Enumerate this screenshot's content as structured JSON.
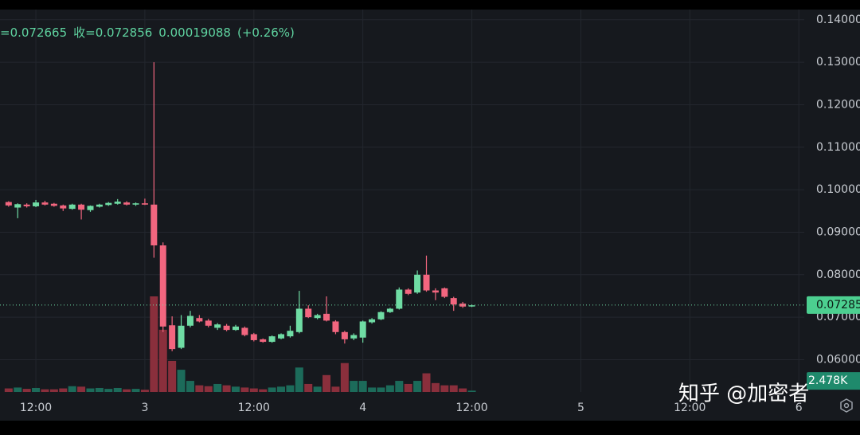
{
  "chart_data": {
    "type": "candlestick",
    "ohlc_header": [
      "=0.072665",
      "收=0.072856",
      "0.00019088",
      "(+0.26%)"
    ],
    "x": [
      9,
      10,
      11,
      12,
      13,
      14,
      15,
      16,
      17,
      18,
      19,
      20,
      21,
      22,
      23,
      24,
      25,
      26,
      27,
      28,
      29,
      30,
      31,
      32,
      33,
      34,
      35,
      36,
      37,
      38,
      39,
      40,
      41,
      42,
      43,
      44,
      45,
      46,
      47,
      48,
      49,
      50,
      51,
      52,
      53,
      54,
      55,
      56,
      57,
      58,
      59,
      60
    ],
    "open": [
      0.0971,
      0.0958,
      0.0965,
      0.0961,
      0.097,
      0.0967,
      0.0963,
      0.0955,
      0.0965,
      0.0952,
      0.096,
      0.0964,
      0.0967,
      0.097,
      0.0965,
      0.0968,
      0.0965,
      0.0869,
      0.0681,
      0.0628,
      0.068,
      0.0698,
      0.0692,
      0.0675,
      0.068,
      0.067,
      0.0675,
      0.066,
      0.0648,
      0.0642,
      0.065,
      0.0655,
      0.0665,
      0.072,
      0.0698,
      0.0708,
      0.069,
      0.0665,
      0.065,
      0.0652,
      0.0688,
      0.0695,
      0.0712,
      0.072,
      0.0765,
      0.0758,
      0.08,
      0.0763,
      0.0768,
      0.0745,
      0.0732,
      0.0726
    ],
    "high": [
      0.0973,
      0.0968,
      0.0968,
      0.0976,
      0.0974,
      0.0969,
      0.0965,
      0.0967,
      0.0967,
      0.0963,
      0.0967,
      0.0971,
      0.0978,
      0.0973,
      0.097,
      0.0979,
      0.13,
      0.0876,
      0.0702,
      0.0705,
      0.0715,
      0.0705,
      0.0696,
      0.0686,
      0.0684,
      0.0682,
      0.0678,
      0.0663,
      0.065,
      0.0657,
      0.0662,
      0.068,
      0.0762,
      0.0728,
      0.0708,
      0.0749,
      0.0693,
      0.0668,
      0.0662,
      0.0692,
      0.0698,
      0.0714,
      0.0722,
      0.077,
      0.0768,
      0.081,
      0.0845,
      0.0768,
      0.077,
      0.0748,
      0.0736,
      0.073
    ],
    "low": [
      0.096,
      0.0933,
      0.0958,
      0.0959,
      0.0963,
      0.096,
      0.095,
      0.0953,
      0.093,
      0.0948,
      0.0958,
      0.0962,
      0.0965,
      0.0963,
      0.0962,
      0.0964,
      0.084,
      0.0665,
      0.062,
      0.0625,
      0.0676,
      0.0688,
      0.0676,
      0.067,
      0.0667,
      0.0668,
      0.0655,
      0.0643,
      0.064,
      0.064,
      0.0648,
      0.0652,
      0.0662,
      0.0698,
      0.0695,
      0.069,
      0.066,
      0.0638,
      0.0646,
      0.064,
      0.0685,
      0.0693,
      0.071,
      0.0718,
      0.0752,
      0.0755,
      0.076,
      0.074,
      0.0745,
      0.0715,
      0.0722,
      0.0724
    ],
    "close": [
      0.0963,
      0.0966,
      0.0961,
      0.097,
      0.0965,
      0.0962,
      0.0956,
      0.0965,
      0.0953,
      0.0962,
      0.0965,
      0.0969,
      0.0972,
      0.0965,
      0.0968,
      0.0965,
      0.0869,
      0.0678,
      0.0625,
      0.068,
      0.0703,
      0.069,
      0.068,
      0.0683,
      0.067,
      0.0678,
      0.0658,
      0.0646,
      0.0642,
      0.0655,
      0.066,
      0.0668,
      0.072,
      0.07,
      0.0705,
      0.0692,
      0.0665,
      0.0648,
      0.0658,
      0.069,
      0.0695,
      0.0712,
      0.072,
      0.0765,
      0.0755,
      0.08,
      0.0763,
      0.0758,
      0.0748,
      0.073,
      0.0725,
      0.0728
    ],
    "volume": [
      0.8,
      1.0,
      0.7,
      0.9,
      0.6,
      0.6,
      0.8,
      1.3,
      1.2,
      0.8,
      0.9,
      0.7,
      0.9,
      0.6,
      0.7,
      0.5,
      21.5,
      14,
      7,
      5,
      2.5,
      1.5,
      1.3,
      1.8,
      1.5,
      1.2,
      1.0,
      0.8,
      0.6,
      1.0,
      1.2,
      1.5,
      5.5,
      1.8,
      1.2,
      3.8,
      1.2,
      6.5,
      2.5,
      2.5,
      1.0,
      1.0,
      1.5,
      2.5,
      1.8,
      2.5,
      4.2,
      2.0,
      1.5,
      1.5,
      0.8,
      0.3
    ],
    "xlim": [
      8.05,
      96.6
    ],
    "xticks": [
      {
        "value": 12,
        "label": "12:00"
      },
      {
        "value": 24,
        "label": "3"
      },
      {
        "value": 36,
        "label": "12:00"
      },
      {
        "value": 48,
        "label": "4"
      },
      {
        "value": 60,
        "label": "12:00"
      },
      {
        "value": 72,
        "label": "5"
      },
      {
        "value": 84,
        "label": "12:00"
      },
      {
        "value": 96,
        "label": "6"
      }
    ],
    "ylim": [
      0.0524,
      0.1424
    ],
    "yticks": [
      {
        "value": 0.06,
        "label": "0.06000"
      },
      {
        "value": 0.07,
        "label": "0.07000"
      },
      {
        "value": 0.08,
        "label": "0.08000"
      },
      {
        "value": 0.09,
        "label": "0.09000"
      },
      {
        "value": 0.1,
        "label": "0.10000"
      },
      {
        "value": 0.11,
        "label": "0.11000"
      },
      {
        "value": 0.12,
        "label": "0.12000"
      },
      {
        "value": 0.13,
        "label": "0.13000"
      },
      {
        "value": 0.14,
        "label": "0.14000"
      }
    ],
    "volume_ylim": [
      0,
      86
    ],
    "last_price": 0.07285,
    "volume_marker": {
      "value": 2.478,
      "label": "2.478K"
    },
    "up_color": "#6fdca4",
    "down_color": "#f2667f",
    "up_volume_color": "#1c6b5a",
    "down_volume_color": "#8a2f3c",
    "grid": true,
    "watermark": "知乎 @加密者"
  }
}
